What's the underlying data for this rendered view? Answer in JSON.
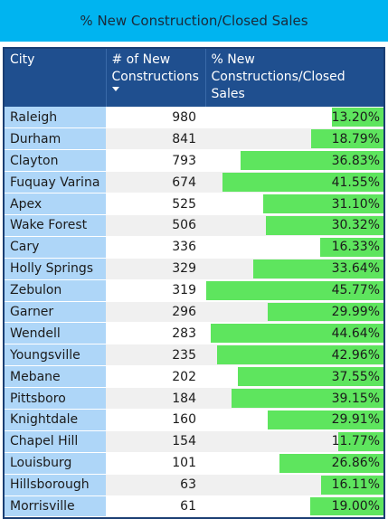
{
  "title": "% New Construction/Closed Sales",
  "colors": {
    "title_bg": "#00b4f0",
    "header_bg": "#1f4f8f",
    "city_bg": "#aed6f8",
    "bar": "#5ee55e"
  },
  "headers": {
    "city": "City",
    "num_line1": "# of New",
    "num_line2": "Constructions",
    "pct_line1": "% New",
    "pct_line2": "Constructions/Closed Sales"
  },
  "sort_icon": "sort-descending-icon",
  "rows": [
    {
      "city": "Raleigh",
      "count": "980",
      "pct": "13.20%",
      "pct_value": 13.2
    },
    {
      "city": "Durham",
      "count": "841",
      "pct": "18.79%",
      "pct_value": 18.79
    },
    {
      "city": "Clayton",
      "count": "793",
      "pct": "36.83%",
      "pct_value": 36.83
    },
    {
      "city": "Fuquay Varina",
      "count": "674",
      "pct": "41.55%",
      "pct_value": 41.55
    },
    {
      "city": "Apex",
      "count": "525",
      "pct": "31.10%",
      "pct_value": 31.1
    },
    {
      "city": "Wake Forest",
      "count": "506",
      "pct": "30.32%",
      "pct_value": 30.32
    },
    {
      "city": "Cary",
      "count": "336",
      "pct": "16.33%",
      "pct_value": 16.33
    },
    {
      "city": "Holly Springs",
      "count": "329",
      "pct": "33.64%",
      "pct_value": 33.64
    },
    {
      "city": "Zebulon",
      "count": "319",
      "pct": "45.77%",
      "pct_value": 45.77
    },
    {
      "city": "Garner",
      "count": "296",
      "pct": "29.99%",
      "pct_value": 29.99
    },
    {
      "city": "Wendell",
      "count": "283",
      "pct": "44.64%",
      "pct_value": 44.64
    },
    {
      "city": "Youngsville",
      "count": "235",
      "pct": "42.96%",
      "pct_value": 42.96
    },
    {
      "city": "Mebane",
      "count": "202",
      "pct": "37.55%",
      "pct_value": 37.55
    },
    {
      "city": "Pittsboro",
      "count": "184",
      "pct": "39.15%",
      "pct_value": 39.15
    },
    {
      "city": "Knightdale",
      "count": "160",
      "pct": "29.91%",
      "pct_value": 29.91
    },
    {
      "city": "Chapel Hill",
      "count": "154",
      "pct": "11.77%",
      "pct_value": 11.77
    },
    {
      "city": "Louisburg",
      "count": "101",
      "pct": "26.86%",
      "pct_value": 26.86
    },
    {
      "city": "Hillsborough",
      "count": "63",
      "pct": "16.11%",
      "pct_value": 16.11
    },
    {
      "city": "Morrisville",
      "count": "61",
      "pct": "19.00%",
      "pct_value": 19.0
    }
  ]
}
